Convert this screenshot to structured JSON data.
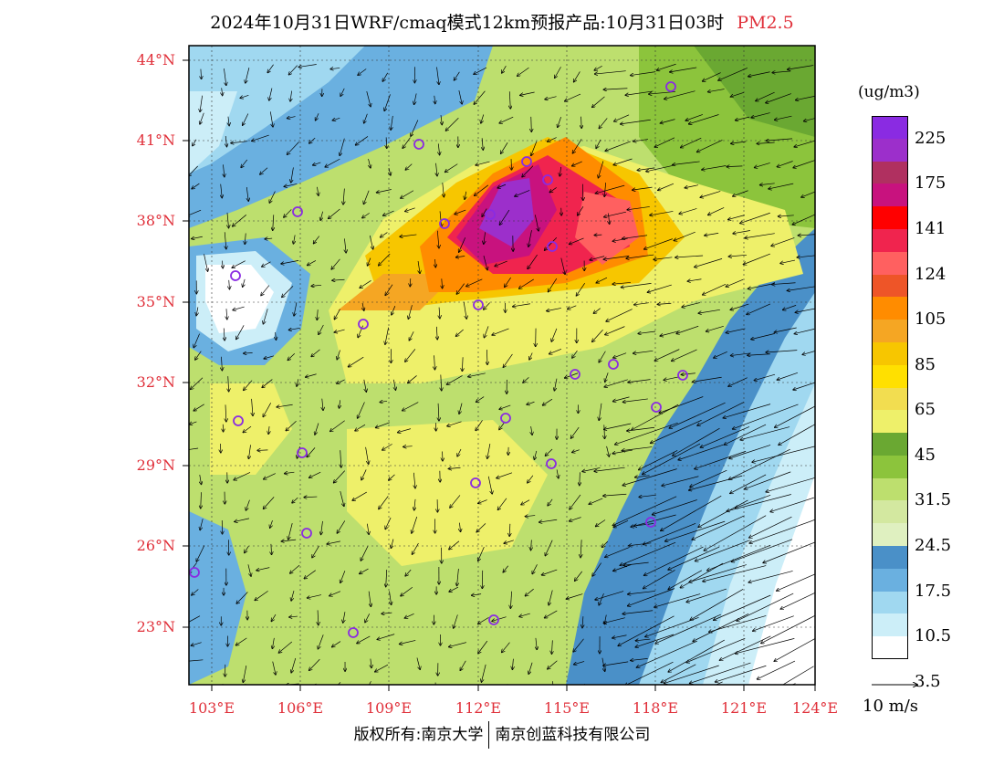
{
  "header": {
    "title": "2024年10月31日WRF/cmaq模式12km预报产品:10月31日03时",
    "pollutant": "PM2.5"
  },
  "map": {
    "lat_ticks": [
      "44°N",
      "41°N",
      "38°N",
      "35°N",
      "32°N",
      "29°N",
      "26°N",
      "23°N"
    ],
    "lon_ticks": [
      "103°E",
      "106°E",
      "109°E",
      "112°E",
      "115°E",
      "118°E",
      "121°E",
      "124°E"
    ],
    "lat_values": [
      44,
      41,
      38,
      35,
      32,
      29,
      26,
      23
    ],
    "lon_values": [
      103,
      106,
      109,
      112,
      115,
      118,
      121,
      124
    ]
  },
  "colorbar": {
    "unit": "(ug/m3)",
    "labels": [
      "225",
      "175",
      "141",
      "124",
      "105",
      "85",
      "65",
      "45",
      "31.5",
      "24.5",
      "17.5",
      "10.5",
      "3.5"
    ],
    "colors": [
      "#8a2be2",
      "#9c2fcb",
      "#b03060",
      "#c8127e",
      "#ff0000",
      "#f0244e",
      "#ff6060",
      "#ee5528",
      "#ff8c00",
      "#f5a623",
      "#f7c600",
      "#ffe000",
      "#f2dd50",
      "#eef06a",
      "#6aa832",
      "#8cc43c",
      "#bddf6e",
      "#d3e8a0",
      "#dff0c0",
      "#4a90c8",
      "#6ab0e0",
      "#a0d8f0",
      "#cceef8",
      "#ffffff"
    ]
  },
  "vector_legend": {
    "label": "10 m/s"
  },
  "footer": {
    "copyright": "版权所有:南京大学",
    "company": "南京创蓝科技有限公司"
  }
}
